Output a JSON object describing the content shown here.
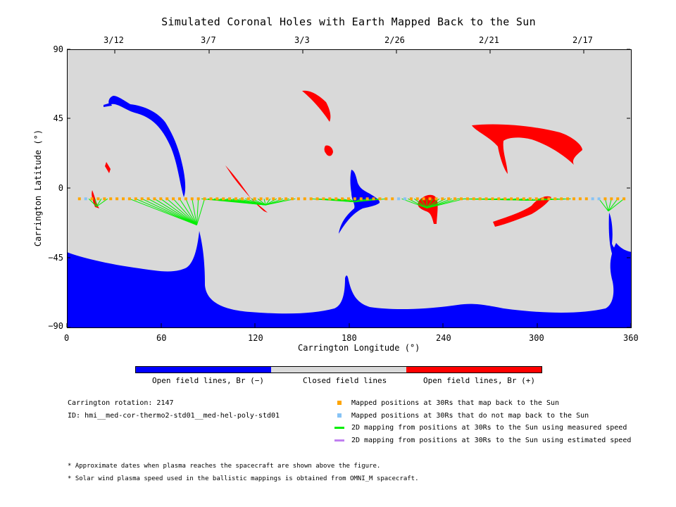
{
  "title": "Simulated Coronal Holes with Earth Mapped Back to the Sun",
  "chart_data": {
    "type": "map",
    "xlabel": "Carrington Longitude (°)",
    "ylabel": "Carrington Latitude (°)",
    "xlim": [
      0,
      360
    ],
    "ylim": [
      -90,
      90
    ],
    "x_ticks": [
      "0",
      "60",
      "120",
      "180",
      "240",
      "300",
      "360"
    ],
    "y_ticks": [
      "90",
      "45",
      "0",
      "−45",
      "−90"
    ],
    "top_date_ticks": [
      "3/12",
      "3/7",
      "3/3",
      "2/26",
      "2/21",
      "2/17"
    ],
    "mapped_latitude": -7,
    "colors": {
      "open_negative": "#0000ff",
      "closed": "#d9d9d9",
      "open_positive": "#ff0000",
      "mapped_back": "#ffa500",
      "not_mapped_back": "#87c3f5",
      "measured_speed": "#00ee00",
      "estimated_speed": "#c080f0"
    }
  },
  "colorbar": {
    "labels": [
      "Open field lines, Br (−)",
      "Closed field lines",
      "Open field lines, Br (+)"
    ]
  },
  "info": {
    "rotation": "Carrington rotation: 2147",
    "id": "ID: hmi__med-cor-thermo2-std01__med-hel-poly-std01"
  },
  "legend": {
    "mapped": "Mapped positions at 30Rs that map back to the Sun",
    "not_mapped": "Mapped positions at 30Rs that do not map back to the Sun",
    "measured": "2D mapping from positions at 30Rs to the Sun using measured speed",
    "estimated": "2D mapping from positions at 30Rs to the Sun using estimated speed"
  },
  "notes": [
    "* Approximate dates when plasma reaches the spacecraft are shown above the figure.",
    "* Solar wind plasma speed used in the ballistic mappings is obtained from OMNI_M spacecraft."
  ]
}
